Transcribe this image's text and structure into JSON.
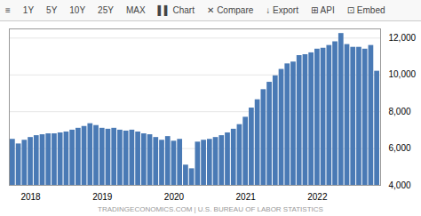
{
  "chart_data": {
    "type": "bar",
    "color": "#4a7ab5",
    "grid": true,
    "annotations": [
      "≡",
      "1Y",
      "5Y",
      "10Y",
      "25Y",
      "MAX",
      "▌▌ Chart",
      "✕ Compare",
      "↓ Export",
      "⊞ API",
      "⊡ Embed"
    ],
    "caption": "TRADINGECONOMICS.COM  |  U.S. BUREAU OF LABOR STATISTICS",
    "ylim": [
      4000,
      12500
    ],
    "yticks": [
      {
        "value": 4000,
        "label": "4,000"
      },
      {
        "value": 6000,
        "label": "6,000"
      },
      {
        "value": 8000,
        "label": "8,000"
      },
      {
        "value": 10000,
        "label": "10,000"
      },
      {
        "value": 12000,
        "label": "12,000"
      }
    ],
    "categories": [
      null,
      null,
      null,
      "2018",
      null,
      null,
      null,
      null,
      null,
      null,
      null,
      null,
      null,
      null,
      null,
      "2019",
      null,
      null,
      null,
      null,
      null,
      null,
      null,
      null,
      null,
      null,
      null,
      "2020",
      null,
      null,
      null,
      null,
      null,
      null,
      null,
      null,
      null,
      null,
      null,
      "2021",
      null,
      null,
      null,
      null,
      null,
      null,
      null,
      null,
      null,
      null,
      null,
      "2022",
      null,
      null,
      null,
      null,
      null,
      null,
      null,
      null,
      null,
      null
    ],
    "values": [
      6500,
      6250,
      6450,
      6600,
      6700,
      6750,
      6800,
      6800,
      6850,
      6900,
      7000,
      7100,
      7200,
      7350,
      7250,
      7100,
      7050,
      7100,
      7000,
      6950,
      7000,
      6900,
      6800,
      6750,
      6600,
      6450,
      6650,
      6400,
      6500,
      5100,
      4900,
      6350,
      6450,
      6500,
      6600,
      6700,
      6850,
      7050,
      7300,
      7700,
      8200,
      8650,
      9200,
      9600,
      9950,
      10300,
      10600,
      10700,
      11050,
      11100,
      11200,
      11400,
      11450,
      11600,
      11800,
      12250,
      11650,
      11500,
      11500,
      11400,
      11600,
      10200
    ]
  }
}
